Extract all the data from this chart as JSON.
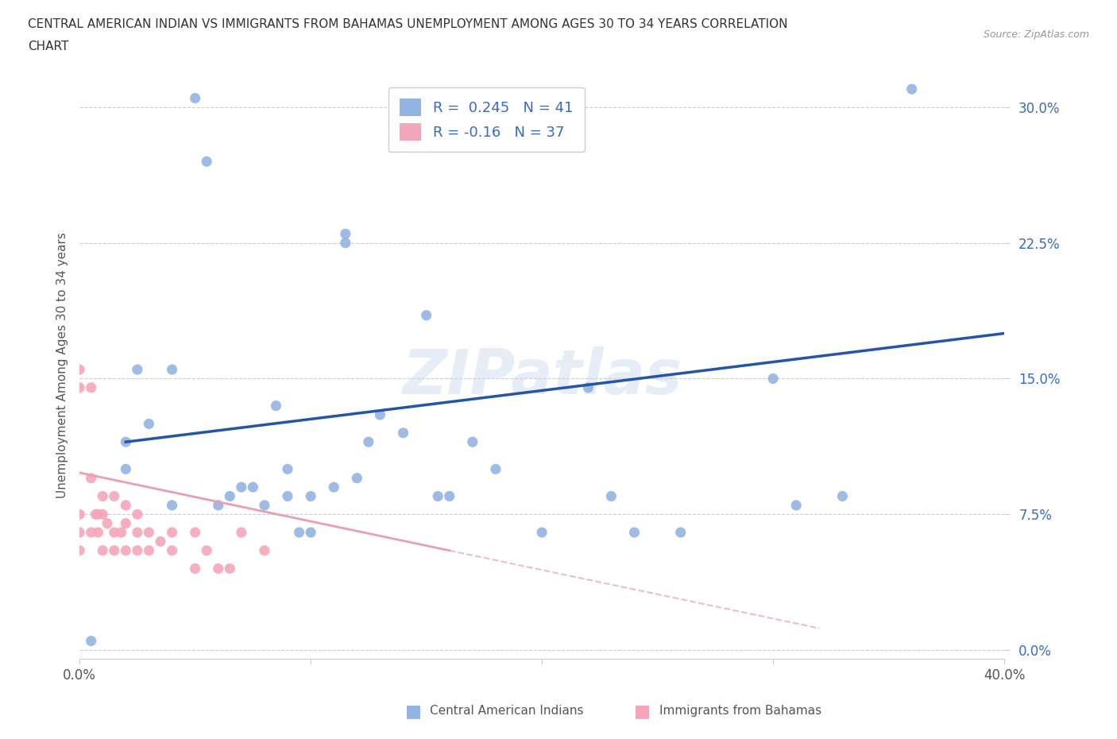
{
  "title_line1": "CENTRAL AMERICAN INDIAN VS IMMIGRANTS FROM BAHAMAS UNEMPLOYMENT AMONG AGES 30 TO 34 YEARS CORRELATION",
  "title_line2": "CHART",
  "source": "Source: ZipAtlas.com",
  "ylabel": "Unemployment Among Ages 30 to 34 years",
  "xlim": [
    0.0,
    0.4
  ],
  "ylim": [
    -0.005,
    0.32
  ],
  "yticks": [
    0.0,
    0.075,
    0.15,
    0.225,
    0.3
  ],
  "ytick_labels": [
    "0.0%",
    "7.5%",
    "15.0%",
    "22.5%",
    "30.0%"
  ],
  "xticks": [
    0.0,
    0.1,
    0.2,
    0.3,
    0.4
  ],
  "xtick_labels": [
    "0.0%",
    "",
    "",
    "",
    "40.0%"
  ],
  "R_blue": 0.245,
  "N_blue": 41,
  "R_pink": -0.16,
  "N_pink": 37,
  "blue_color": "#92b4e3",
  "pink_color": "#f4a7b9",
  "blue_line_color": "#2554a8",
  "pink_line_color": "#e8a0b0",
  "watermark": "ZIPatlas",
  "blue_scatter_x": [
    0.005,
    0.02,
    0.02,
    0.03,
    0.04,
    0.05,
    0.055,
    0.06,
    0.065,
    0.07,
    0.075,
    0.08,
    0.085,
    0.09,
    0.09,
    0.095,
    0.1,
    0.1,
    0.11,
    0.115,
    0.115,
    0.12,
    0.125,
    0.13,
    0.14,
    0.15,
    0.155,
    0.16,
    0.17,
    0.18,
    0.2,
    0.22,
    0.23,
    0.24,
    0.26,
    0.3,
    0.31,
    0.33,
    0.36,
    0.025,
    0.04
  ],
  "blue_scatter_y": [
    0.005,
    0.115,
    0.1,
    0.125,
    0.08,
    0.305,
    0.27,
    0.08,
    0.085,
    0.09,
    0.09,
    0.08,
    0.135,
    0.085,
    0.1,
    0.065,
    0.065,
    0.085,
    0.09,
    0.225,
    0.23,
    0.095,
    0.115,
    0.13,
    0.12,
    0.185,
    0.085,
    0.085,
    0.115,
    0.1,
    0.065,
    0.145,
    0.085,
    0.065,
    0.065,
    0.15,
    0.08,
    0.085,
    0.31,
    0.155,
    0.155
  ],
  "pink_scatter_x": [
    0.0,
    0.0,
    0.0,
    0.0,
    0.0,
    0.005,
    0.005,
    0.005,
    0.007,
    0.008,
    0.008,
    0.01,
    0.01,
    0.01,
    0.012,
    0.015,
    0.015,
    0.015,
    0.018,
    0.02,
    0.02,
    0.02,
    0.025,
    0.025,
    0.025,
    0.03,
    0.03,
    0.035,
    0.04,
    0.04,
    0.05,
    0.05,
    0.055,
    0.06,
    0.065,
    0.07,
    0.08
  ],
  "pink_scatter_y": [
    0.155,
    0.145,
    0.075,
    0.065,
    0.055,
    0.145,
    0.095,
    0.065,
    0.075,
    0.075,
    0.065,
    0.085,
    0.075,
    0.055,
    0.07,
    0.085,
    0.065,
    0.055,
    0.065,
    0.08,
    0.07,
    0.055,
    0.075,
    0.065,
    0.055,
    0.065,
    0.055,
    0.06,
    0.065,
    0.055,
    0.065,
    0.045,
    0.055,
    0.045,
    0.045,
    0.065,
    0.055
  ],
  "blue_line_x": [
    0.02,
    0.4
  ],
  "blue_line_y": [
    0.115,
    0.175
  ],
  "pink_line_x": [
    0.0,
    0.16
  ],
  "pink_line_y": [
    0.098,
    0.055
  ]
}
